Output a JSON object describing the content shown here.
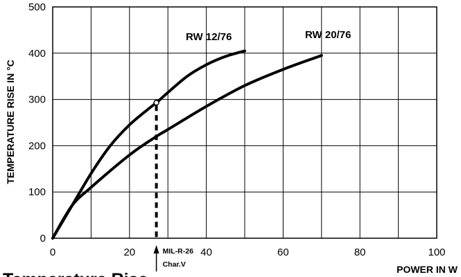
{
  "chart_data": {
    "type": "line",
    "xlabel": "POWER IN W",
    "ylabel": "TEMPERATURE RISE IN °C",
    "xlim": [
      0,
      100
    ],
    "ylim": [
      0,
      500
    ],
    "x_ticks": [
      "0",
      "20",
      "40",
      "60",
      "80",
      "100"
    ],
    "y_ticks": [
      "0",
      "100",
      "200",
      "300",
      "400",
      "500"
    ],
    "grid": true,
    "series": [
      {
        "name": "RW 12/76",
        "x": [
          0,
          5,
          10,
          15,
          20,
          25,
          27,
          30,
          35,
          40,
          45,
          50
        ],
        "y": [
          0,
          70,
          140,
          200,
          245,
          280,
          293,
          315,
          350,
          375,
          393,
          405
        ]
      },
      {
        "name": "RW 20/76",
        "x": [
          0,
          5,
          10,
          20,
          27,
          30,
          40,
          50,
          60,
          70
        ],
        "y": [
          0,
          70,
          110,
          180,
          220,
          235,
          285,
          330,
          365,
          395
        ]
      }
    ],
    "annotations": {
      "marker_x": 27,
      "marker_y": 293,
      "label_line1": "MIL-R-26",
      "label_line2": "Char.V"
    }
  },
  "caption": "Temperature Rise"
}
